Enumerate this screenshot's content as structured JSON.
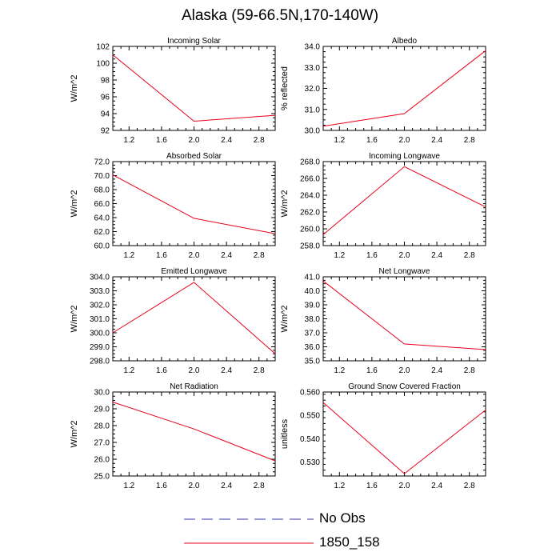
{
  "title": "Alaska (59-66.5N,170-140W)",
  "colors": {
    "model_line": "#e8001c",
    "obs_line": "#3a3aa8",
    "axis": "#000000"
  },
  "legend": [
    {
      "label": "No Obs",
      "style": "dashed",
      "color": "#3a3aa8"
    },
    {
      "label": "1850_158",
      "style": "solid",
      "color": "#e8001c"
    }
  ],
  "chart_data": [
    {
      "type": "line",
      "title": "Incoming Solar",
      "ylabel": "W/m^2",
      "x": [
        1,
        2,
        3
      ],
      "values": [
        101.0,
        93.1,
        93.8
      ],
      "xlim": [
        1,
        3
      ],
      "ylim": [
        92,
        102
      ],
      "xticks": [
        1.2,
        1.6,
        2.0,
        2.4,
        2.8
      ],
      "xtick_labels": [
        "1.2",
        "1.6",
        "2.0",
        "2.4",
        "2.8"
      ],
      "yticks": [
        92,
        94,
        96,
        98,
        100,
        102
      ],
      "ytick_labels": [
        "92",
        "94",
        "96",
        "98",
        "100",
        "102"
      ]
    },
    {
      "type": "line",
      "title": "Albedo",
      "ylabel": "% reflected",
      "x": [
        1,
        2,
        3
      ],
      "values": [
        30.2,
        30.8,
        33.8
      ],
      "xlim": [
        1,
        3
      ],
      "ylim": [
        30,
        34
      ],
      "xticks": [
        1.2,
        1.6,
        2.0,
        2.4,
        2.8
      ],
      "xtick_labels": [
        "1.2",
        "1.6",
        "2.0",
        "2.4",
        "2.8"
      ],
      "yticks": [
        30,
        31,
        32,
        33,
        34
      ],
      "ytick_labels": [
        "30.0",
        "31.0",
        "32.0",
        "33.0",
        "34.0"
      ]
    },
    {
      "type": "line",
      "title": "Absorbed Solar",
      "ylabel": "W/m^2",
      "x": [
        1,
        2,
        3
      ],
      "values": [
        70.1,
        63.9,
        61.7
      ],
      "xlim": [
        1,
        3
      ],
      "ylim": [
        60,
        72
      ],
      "xticks": [
        1.2,
        1.6,
        2.0,
        2.4,
        2.8
      ],
      "xtick_labels": [
        "1.2",
        "1.6",
        "2.0",
        "2.4",
        "2.8"
      ],
      "yticks": [
        60,
        62,
        64,
        66,
        68,
        70,
        72
      ],
      "ytick_labels": [
        "60.0",
        "62.0",
        "64.0",
        "66.0",
        "68.0",
        "70.0",
        "72.0"
      ]
    },
    {
      "type": "line",
      "title": "Incoming Longwave",
      "ylabel": "W/m^2",
      "x": [
        1,
        2,
        3
      ],
      "values": [
        259.3,
        267.4,
        262.6
      ],
      "xlim": [
        1,
        3
      ],
      "ylim": [
        258,
        268
      ],
      "xticks": [
        1.2,
        1.6,
        2.0,
        2.4,
        2.8
      ],
      "xtick_labels": [
        "1.2",
        "1.6",
        "2.0",
        "2.4",
        "2.8"
      ],
      "yticks": [
        258,
        260,
        262,
        264,
        266,
        268
      ],
      "ytick_labels": [
        "258.0",
        "260.0",
        "262.0",
        "264.0",
        "266.0",
        "268.0"
      ]
    },
    {
      "type": "line",
      "title": "Emitted Longwave",
      "ylabel": "W/m^2",
      "x": [
        1,
        2,
        3
      ],
      "values": [
        300.0,
        303.6,
        298.5
      ],
      "xlim": [
        1,
        3
      ],
      "ylim": [
        298,
        304
      ],
      "xticks": [
        1.2,
        1.6,
        2.0,
        2.4,
        2.8
      ],
      "xtick_labels": [
        "1.2",
        "1.6",
        "2.0",
        "2.4",
        "2.8"
      ],
      "yticks": [
        298,
        299,
        300,
        301,
        302,
        303,
        304
      ],
      "ytick_labels": [
        "298.0",
        "299.0",
        "300.0",
        "301.0",
        "302.0",
        "303.0",
        "304.0"
      ]
    },
    {
      "type": "line",
      "title": "Net Longwave",
      "ylabel": "W/m^2",
      "x": [
        1,
        2,
        3
      ],
      "values": [
        40.7,
        36.2,
        35.8
      ],
      "xlim": [
        1,
        3
      ],
      "ylim": [
        35,
        41
      ],
      "xticks": [
        1.2,
        1.6,
        2.0,
        2.4,
        2.8
      ],
      "xtick_labels": [
        "1.2",
        "1.6",
        "2.0",
        "2.4",
        "2.8"
      ],
      "yticks": [
        35,
        36,
        37,
        38,
        39,
        40,
        41
      ],
      "ytick_labels": [
        "35.0",
        "36.0",
        "37.0",
        "38.0",
        "39.0",
        "40.0",
        "41.0"
      ]
    },
    {
      "type": "line",
      "title": "Net Radiation",
      "ylabel": "W/m^2",
      "x": [
        1,
        2,
        3
      ],
      "values": [
        29.4,
        27.8,
        25.9
      ],
      "xlim": [
        1,
        3
      ],
      "ylim": [
        25,
        30
      ],
      "xticks": [
        1.2,
        1.6,
        2.0,
        2.4,
        2.8
      ],
      "xtick_labels": [
        "1.2",
        "1.6",
        "2.0",
        "2.4",
        "2.8"
      ],
      "yticks": [
        25,
        26,
        27,
        28,
        29,
        30
      ],
      "ytick_labels": [
        "25.0",
        "26.0",
        "27.0",
        "28.0",
        "29.0",
        "30.0"
      ]
    },
    {
      "type": "line",
      "title": "Ground Snow Covered Fraction",
      "ylabel": "unitless",
      "x": [
        1,
        2,
        3
      ],
      "values": [
        0.5555,
        0.525,
        0.5523
      ],
      "xlim": [
        1,
        3
      ],
      "ylim": [
        0.524,
        0.56
      ],
      "xticks": [
        1.2,
        1.6,
        2.0,
        2.4,
        2.8
      ],
      "xtick_labels": [
        "1.2",
        "1.6",
        "2.0",
        "2.4",
        "2.8"
      ],
      "yticks": [
        0.53,
        0.54,
        0.55,
        0.56
      ],
      "ytick_labels": [
        "0.530",
        "0.540",
        "0.550",
        "0.560"
      ]
    }
  ]
}
